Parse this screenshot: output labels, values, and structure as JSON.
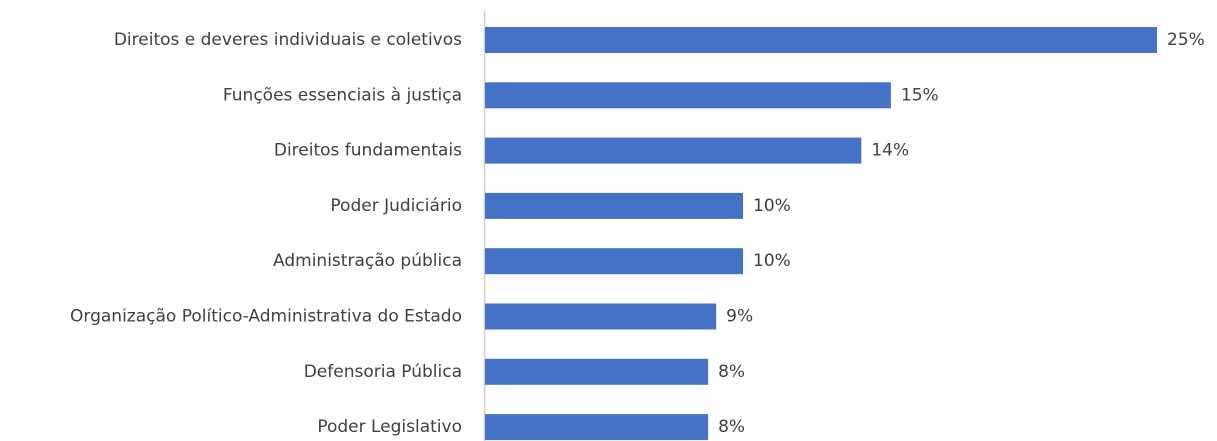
{
  "chart_data": {
    "type": "hbar",
    "categories": [
      "Direitos e deveres individuais e coletivos",
      "Funções essenciais à justiça",
      "Direitos fundamentais",
      "Poder Judiciário",
      "Administração pública",
      "Organização Político-Administrativa do Estado",
      "Defensoria Pública",
      "Poder Legislativo"
    ],
    "values": [
      25,
      15.1,
      14,
      9.6,
      9.6,
      8.6,
      8.3,
      8.3
    ],
    "value_labels": [
      "25%",
      "15%",
      "14%",
      "10%",
      "10%",
      "9%",
      "8%",
      "8%"
    ],
    "color": "#4472c4"
  }
}
